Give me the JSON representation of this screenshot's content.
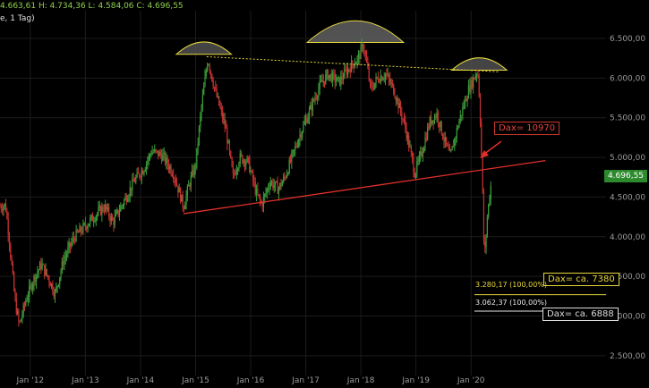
{
  "header": {
    "ohlc": "4.663,61  H: 4.734,36  L: 4.584,06  C: 4.696,55",
    "interval": "e, 1 Tag)"
  },
  "annotations": {
    "price_badge": "4.696,55",
    "dax_red": "Dax= 10970",
    "dax_yellow": "Dax= ca. 7380",
    "dax_white": "Dax= ca. 6888",
    "level_yellow": "3.280,17 (100,00%)",
    "level_white": "3.062,37 (100,00%)"
  },
  "colors": {
    "background": "#000000",
    "candle_up": "#3a9c3a",
    "candle_down": "#c83232",
    "trendline": "#e0302a",
    "accent_yellow": "#e6d63c",
    "grid": "#1c1c1c"
  },
  "chart_data": {
    "type": "candlestick",
    "title": "",
    "ylim": [
      2250,
      6850
    ],
    "y_ticks": [
      "2.500,00",
      "3.000,00",
      "3.500,00",
      "4.000,00",
      "4.500,00",
      "5.000,00",
      "5.500,00",
      "6.000,00",
      "6.500,00"
    ],
    "x_ticks": [
      "Jan '12",
      "Jan '13",
      "Jan '14",
      "Jan '15",
      "Jan '16",
      "Jan '17",
      "Jan '18",
      "Jan '19",
      "Jan '20"
    ],
    "xlim_years": [
      2011.45,
      2022.45
    ],
    "price_path": [
      [
        2011.45,
        4380
      ],
      [
        2011.55,
        4400
      ],
      [
        2011.62,
        3950
      ],
      [
        2011.72,
        3200
      ],
      [
        2011.8,
        2880
      ],
      [
        2011.92,
        3200
      ],
      [
        2012.05,
        3450
      ],
      [
        2012.2,
        3650
      ],
      [
        2012.35,
        3450
      ],
      [
        2012.45,
        3280
      ],
      [
        2012.6,
        3700
      ],
      [
        2012.8,
        4000
      ],
      [
        2012.95,
        4100
      ],
      [
        2013.15,
        4250
      ],
      [
        2013.35,
        4380
      ],
      [
        2013.5,
        4180
      ],
      [
        2013.7,
        4450
      ],
      [
        2013.9,
        4720
      ],
      [
        2014.05,
        4850
      ],
      [
        2014.2,
        5080
      ],
      [
        2014.4,
        5020
      ],
      [
        2014.6,
        4800
      ],
      [
        2014.78,
        4380
      ],
      [
        2014.9,
        4700
      ],
      [
        2015.0,
        4900
      ],
      [
        2015.1,
        5600
      ],
      [
        2015.22,
        6250
      ],
      [
        2015.35,
        5850
      ],
      [
        2015.55,
        5350
      ],
      [
        2015.68,
        4750
      ],
      [
        2015.8,
        5000
      ],
      [
        2015.95,
        4950
      ],
      [
        2016.1,
        4550
      ],
      [
        2016.2,
        4400
      ],
      [
        2016.35,
        4700
      ],
      [
        2016.5,
        4600
      ],
      [
        2016.62,
        4750
      ],
      [
        2016.75,
        5000
      ],
      [
        2016.9,
        5300
      ],
      [
        2017.05,
        5550
      ],
      [
        2017.25,
        5900
      ],
      [
        2017.4,
        6050
      ],
      [
        2017.6,
        5950
      ],
      [
        2017.75,
        6100
      ],
      [
        2017.95,
        6250
      ],
      [
        2018.05,
        6420
      ],
      [
        2018.18,
        5850
      ],
      [
        2018.3,
        6000
      ],
      [
        2018.45,
        6050
      ],
      [
        2018.6,
        5850
      ],
      [
        2018.8,
        5400
      ],
      [
        2018.98,
        4800
      ],
      [
        2019.1,
        5050
      ],
      [
        2019.25,
        5450
      ],
      [
        2019.38,
        5550
      ],
      [
        2019.5,
        5250
      ],
      [
        2019.62,
        5000
      ],
      [
        2019.78,
        5450
      ],
      [
        2019.95,
        5850
      ],
      [
        2020.05,
        6000
      ],
      [
        2020.12,
        6100
      ],
      [
        2020.16,
        5650
      ],
      [
        2020.2,
        4800
      ],
      [
        2020.24,
        3700
      ],
      [
        2020.3,
        4300
      ],
      [
        2020.36,
        4650
      ],
      [
        2020.38,
        4697
      ]
    ],
    "trendlines": [
      {
        "name": "support",
        "from": [
          2014.78,
          4290
        ],
        "to": [
          2021.35,
          4960
        ]
      },
      {
        "name": "head-shoulders top",
        "from": [
          2015.2,
          6270
        ],
        "to": [
          2020.5,
          6080
        ]
      }
    ],
    "levels": [
      {
        "value": 3280.17,
        "label": "3.280,17 (100,00%)"
      },
      {
        "value": 3062.37,
        "label": "3.062,37 (100,00%)"
      }
    ],
    "arcs": [
      {
        "center_year": 2015.15,
        "value": 6300,
        "width_years": 1.0,
        "fill": "#555"
      },
      {
        "center_year": 2017.9,
        "value": 6450,
        "width_years": 1.75,
        "fill": "#666"
      },
      {
        "center_year": 2020.15,
        "value": 6100,
        "width_years": 1.0,
        "fill": "#555"
      }
    ]
  }
}
